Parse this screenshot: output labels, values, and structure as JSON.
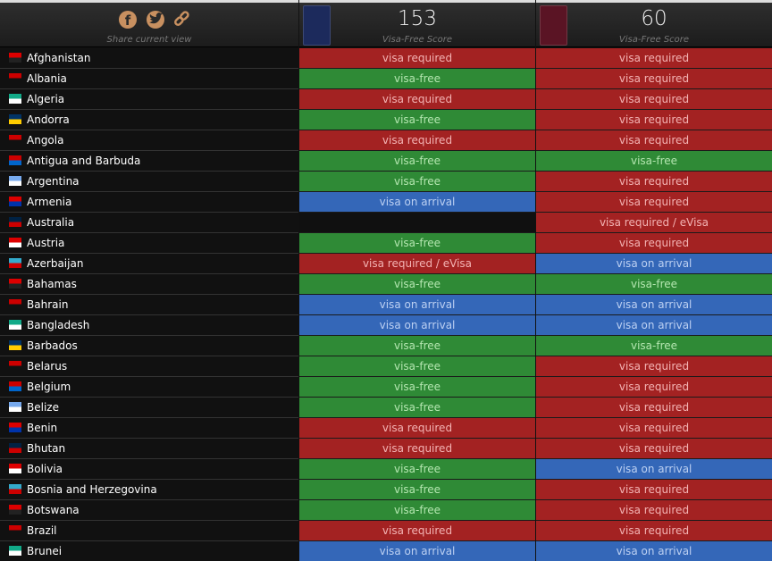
{
  "header": {
    "share_text": "Share current view",
    "passports": [
      {
        "score": 153,
        "label": "Visa-Free Score",
        "cover": "#1c2a5c"
      },
      {
        "score": 60,
        "label": "Visa-Free Score",
        "cover": "#5a1424"
      }
    ]
  },
  "palette": {
    "red": {
      "bg": "#a32222",
      "fg": "#f3b3b3"
    },
    "green": {
      "bg": "#2f8a36",
      "fg": "#b4e6b0"
    },
    "blue": {
      "bg": "#3467b8",
      "fg": "#bcd0f2"
    },
    "black": {
      "bg": "#101010",
      "fg": "#ffffff"
    }
  },
  "rows": [
    {
      "country": "Afghanistan",
      "cells": [
        {
          "text": "visa required",
          "color": "red"
        },
        {
          "text": "visa required",
          "color": "red"
        }
      ]
    },
    {
      "country": "Albania",
      "cells": [
        {
          "text": "visa-free",
          "color": "green"
        },
        {
          "text": "visa required",
          "color": "red"
        }
      ]
    },
    {
      "country": "Algeria",
      "cells": [
        {
          "text": "visa required",
          "color": "red"
        },
        {
          "text": "visa required",
          "color": "red"
        }
      ]
    },
    {
      "country": "Andorra",
      "cells": [
        {
          "text": "visa-free",
          "color": "green"
        },
        {
          "text": "visa required",
          "color": "red"
        }
      ]
    },
    {
      "country": "Angola",
      "cells": [
        {
          "text": "visa required",
          "color": "red"
        },
        {
          "text": "visa required",
          "color": "red"
        }
      ]
    },
    {
      "country": "Antigua and Barbuda",
      "cells": [
        {
          "text": "visa-free",
          "color": "green"
        },
        {
          "text": "visa-free",
          "color": "green"
        }
      ]
    },
    {
      "country": "Argentina",
      "cells": [
        {
          "text": "visa-free",
          "color": "green"
        },
        {
          "text": "visa required",
          "color": "red"
        }
      ]
    },
    {
      "country": "Armenia",
      "cells": [
        {
          "text": "visa on arrival",
          "color": "blue"
        },
        {
          "text": "visa required",
          "color": "red"
        }
      ]
    },
    {
      "country": "Australia",
      "cells": [
        {
          "text": null,
          "color": "black"
        },
        {
          "text": "visa required / eVisa",
          "color": "red"
        }
      ]
    },
    {
      "country": "Austria",
      "cells": [
        {
          "text": "visa-free",
          "color": "green"
        },
        {
          "text": "visa required",
          "color": "red"
        }
      ]
    },
    {
      "country": "Azerbaijan",
      "cells": [
        {
          "text": "visa required / eVisa",
          "color": "red"
        },
        {
          "text": "visa on arrival",
          "color": "blue"
        }
      ]
    },
    {
      "country": "Bahamas",
      "cells": [
        {
          "text": "visa-free",
          "color": "green"
        },
        {
          "text": "visa-free",
          "color": "green"
        }
      ]
    },
    {
      "country": "Bahrain",
      "cells": [
        {
          "text": "visa on arrival",
          "color": "blue"
        },
        {
          "text": "visa on arrival",
          "color": "blue"
        }
      ]
    },
    {
      "country": "Bangladesh",
      "cells": [
        {
          "text": "visa on arrival",
          "color": "blue"
        },
        {
          "text": "visa on arrival",
          "color": "blue"
        }
      ]
    },
    {
      "country": "Barbados",
      "cells": [
        {
          "text": "visa-free",
          "color": "green"
        },
        {
          "text": "visa-free",
          "color": "green"
        }
      ]
    },
    {
      "country": "Belarus",
      "cells": [
        {
          "text": "visa-free",
          "color": "green"
        },
        {
          "text": "visa required",
          "color": "red"
        }
      ]
    },
    {
      "country": "Belgium",
      "cells": [
        {
          "text": "visa-free",
          "color": "green"
        },
        {
          "text": "visa required",
          "color": "red"
        }
      ]
    },
    {
      "country": "Belize",
      "cells": [
        {
          "text": "visa-free",
          "color": "green"
        },
        {
          "text": "visa required",
          "color": "red"
        }
      ]
    },
    {
      "country": "Benin",
      "cells": [
        {
          "text": "visa required",
          "color": "red"
        },
        {
          "text": "visa required",
          "color": "red"
        }
      ]
    },
    {
      "country": "Bhutan",
      "cells": [
        {
          "text": "visa required",
          "color": "red"
        },
        {
          "text": "visa required",
          "color": "red"
        }
      ]
    },
    {
      "country": "Bolivia",
      "cells": [
        {
          "text": "visa-free",
          "color": "green"
        },
        {
          "text": "visa on arrival",
          "color": "blue"
        }
      ]
    },
    {
      "country": "Bosnia and Herzegovina",
      "cells": [
        {
          "text": "visa-free",
          "color": "green"
        },
        {
          "text": "visa required",
          "color": "red"
        }
      ]
    },
    {
      "country": "Botswana",
      "cells": [
        {
          "text": "visa-free",
          "color": "green"
        },
        {
          "text": "visa required",
          "color": "red"
        }
      ]
    },
    {
      "country": "Brazil",
      "cells": [
        {
          "text": "visa required",
          "color": "red"
        },
        {
          "text": "visa required",
          "color": "red"
        }
      ]
    },
    {
      "country": "Brunei",
      "cells": [
        {
          "text": "visa on arrival",
          "color": "blue"
        },
        {
          "text": "visa on arrival",
          "color": "blue"
        }
      ]
    }
  ]
}
